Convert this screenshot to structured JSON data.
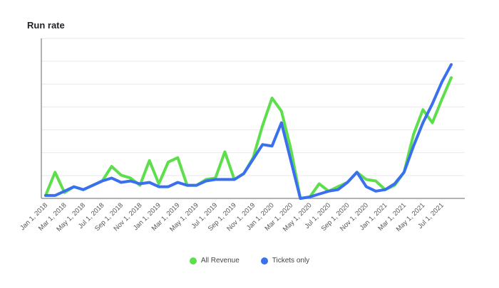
{
  "colors": {
    "all_revenue": "#5ddf4c",
    "tickets_only": "#3a6ff0",
    "grid": "#e9e9e9",
    "axis": "#999999"
  },
  "chart_data": {
    "type": "line",
    "title": "Run rate",
    "xlabel": "",
    "ylabel": "",
    "y_tick_labels_shown": false,
    "ylim": [
      0,
      110
    ],
    "grid": true,
    "legend_position": "bottom-center",
    "x": [
      "Jan 1, 2018",
      "Feb 1, 2018",
      "Mar 1, 2018",
      "Apr 1, 2018",
      "May 1, 2018",
      "Jun 1, 2018",
      "Jul 1, 2018",
      "Aug 1, 2018",
      "Sep 1, 2018",
      "Oct 1, 2018",
      "Nov 1, 2018",
      "Dec 1, 2018",
      "Jan 1, 2019",
      "Feb 1, 2019",
      "Mar 1, 2019",
      "Apr 1, 2019",
      "May 1, 2019",
      "Jun 1, 2019",
      "Jul 1, 2019",
      "Aug 1, 2019",
      "Sep 1, 2019",
      "Oct 1, 2019",
      "Nov 1, 2019",
      "Dec 1, 2019",
      "Jan 1, 2020",
      "Feb 1, 2020",
      "Mar 1, 2020",
      "Apr 1, 2020",
      "May 1, 2020",
      "Jun 1, 2020",
      "Jul 1, 2020",
      "Aug 1, 2020",
      "Sep 1, 2020",
      "Oct 1, 2020",
      "Nov 1, 2020",
      "Dec 1, 2020",
      "Jan 1, 2021",
      "Feb 1, 2021",
      "Mar 1, 2021",
      "Apr 1, 2021",
      "May 1, 2021",
      "Jun 1, 2021",
      "Jul 1, 2021",
      "Aug 1, 2021"
    ],
    "x_tick_labels": [
      "Jan 1, 2018",
      "Mar 1, 2018",
      "May 1, 2018",
      "Jul 1, 2018",
      "Sep 1, 2018",
      "Nov 1, 2018",
      "Jan 1, 2019",
      "Mar 1, 2019",
      "May 1, 2019",
      "Jul 1, 2019",
      "Sep 1, 2019",
      "Nov 1, 2019",
      "Jan 1, 2020",
      "Mar 1, 2020",
      "May 1, 2020",
      "Jul 1, 2020",
      "Sep 1, 2020",
      "Nov 1, 2020",
      "Jan 1, 2021",
      "Mar 1, 2021",
      "May 1, 2021",
      "Jul 1, 2021"
    ],
    "series": [
      {
        "name": "All Revenue",
        "values": [
          2,
          18,
          4,
          8,
          6,
          9,
          12,
          22,
          16,
          14,
          9,
          26,
          10,
          25,
          28,
          9,
          9,
          13,
          14,
          32,
          13,
          17,
          28,
          50,
          69,
          60,
          34,
          0,
          1,
          10,
          5,
          8,
          11,
          18,
          13,
          12,
          6,
          9,
          18,
          44,
          61,
          52,
          68,
          83
        ]
      },
      {
        "name": "Tickets only",
        "values": [
          2,
          2,
          5,
          8,
          6,
          9,
          12,
          14,
          11,
          12,
          10,
          11,
          8,
          8,
          11,
          9,
          9,
          12,
          13,
          13,
          13,
          17,
          27,
          37,
          36,
          52,
          26,
          0,
          1,
          3,
          5,
          6,
          11,
          18,
          8,
          5,
          6,
          10,
          18,
          36,
          52,
          65,
          80,
          92
        ]
      }
    ]
  }
}
